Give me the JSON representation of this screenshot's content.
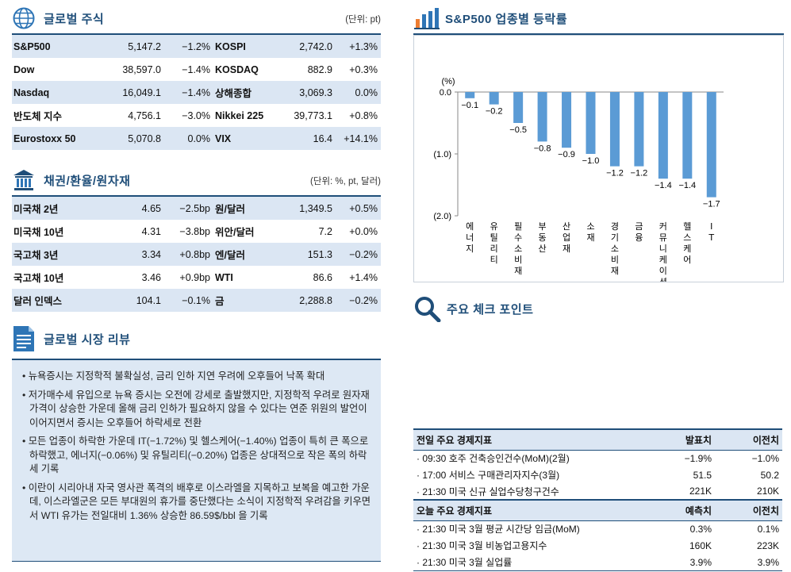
{
  "global_stocks": {
    "title": "글로벌 주식",
    "unit": "(단위: pt)",
    "rows": [
      {
        "name1": "S&P500",
        "val1": "5,147.2",
        "chg1": "−1.2%",
        "name2": "KOSPI",
        "val2": "2,742.0",
        "chg2": "+1.3%"
      },
      {
        "name1": "Dow",
        "val1": "38,597.0",
        "chg1": "−1.4%",
        "name2": "KOSDAQ",
        "val2": "882.9",
        "chg2": "+0.3%"
      },
      {
        "name1": "Nasdaq",
        "val1": "16,049.1",
        "chg1": "−1.4%",
        "name2": "상해종합",
        "val2": "3,069.3",
        "chg2": "0.0%"
      },
      {
        "name1": "반도체 지수",
        "val1": "4,756.1",
        "chg1": "−3.0%",
        "name2": "Nikkei 225",
        "val2": "39,773.1",
        "chg2": "+0.8%"
      },
      {
        "name1": "Eurostoxx 50",
        "val1": "5,070.8",
        "chg1": "0.0%",
        "name2": "VIX",
        "val2": "16.4",
        "chg2": "+14.1%"
      }
    ]
  },
  "bonds_fx": {
    "title": "채권/환율/원자재",
    "unit": "(단위: %, pt, 달러)",
    "rows": [
      {
        "name1": "미국채 2년",
        "val1": "4.65",
        "chg1": "−2.5bp",
        "name2": "원/달러",
        "val2": "1,349.5",
        "chg2": "+0.5%"
      },
      {
        "name1": "미국채 10년",
        "val1": "4.31",
        "chg1": "−3.8bp",
        "name2": "위안/달러",
        "val2": "7.2",
        "chg2": "+0.0%"
      },
      {
        "name1": "국고채 3년",
        "val1": "3.34",
        "chg1": "+0.8bp",
        "name2": "엔/달러",
        "val2": "151.3",
        "chg2": "−0.2%"
      },
      {
        "name1": "국고채 10년",
        "val1": "3.46",
        "chg1": "+0.9bp",
        "name2": "WTI",
        "val2": "86.6",
        "chg2": "+1.4%"
      },
      {
        "name1": "달러 인덱스",
        "val1": "104.1",
        "chg1": "−0.1%",
        "name2": "금",
        "val2": "2,288.8",
        "chg2": "−0.2%"
      }
    ]
  },
  "review": {
    "title": "글로벌 시장 리뷰",
    "bullets": [
      "뉴욕증시는 지정학적 불확실성, 금리 인하 지연 우려에 오후들어 낙폭 확대",
      "저가매수세 유입으로 뉴욕 증시는 오전에 강세로 출발했지만, 지정학적 우려로 원자재 가격이 상승한 가운데 올해 금리 인하가 필요하지 않을 수 있다는 연준 위원의 발언이 이어지면서 증시는 오후들어 하락세로 전환",
      "모든 업종이 하락한 가운데 IT(−1.72%) 및 헬스케어(−1.40%) 업종이 특히 큰 폭으로 하락했고, 에너지(−0.06%) 및 유틸리티(−0.20%) 업종은 상대적으로 작은 폭의 하락세 기록",
      "이란이 시리아내 자국 영사관 폭격의 배후로 이스라엘을 지목하고 보복을 예고한 가운데, 이스라엘군은 모든 부대원의 휴가를 중단했다는 소식이 지정학적 우려감을 키우면서 WTI 유가는 전일대비 1.36% 상승한 86.59$/bbl 을 기록"
    ]
  },
  "sector_chart": {
    "title": "S&P500 업종별 등락률"
  },
  "chart_data": {
    "type": "bar",
    "unit_label": "(%)",
    "categories": [
      "에너지",
      "유틸리티",
      "필수소비재",
      "부동산",
      "산업재",
      "소재",
      "경기소비재",
      "금융",
      "커뮤니케이션",
      "헬스케어",
      "IT"
    ],
    "values": [
      -0.1,
      -0.2,
      -0.5,
      -0.8,
      -0.9,
      -1.0,
      -1.2,
      -1.2,
      -1.4,
      -1.4,
      -1.7
    ],
    "value_labels": [
      "−0.1",
      "−0.2",
      "−0.5",
      "−0.8",
      "−0.9",
      "−1.0",
      "−1.2",
      "−1.2",
      "−1.4",
      "−1.4",
      "−1.7"
    ],
    "ylim": [
      -2.0,
      0.0
    ],
    "yticks": [
      0.0,
      -1.0,
      -2.0
    ],
    "ytick_labels": [
      "0.0",
      "(1.0)",
      "(2.0)"
    ],
    "bar_color": "#5b9bd5",
    "grid": false
  },
  "checkpoint": {
    "title": "주요 체크 포인트"
  },
  "econ_prev": {
    "header": [
      "전일 주요 경제지표",
      "발표치",
      "이전치"
    ],
    "rows": [
      [
        "· 09:30 호주 건축승인건수(MoM)(2월)",
        "−1.9%",
        "−1.0%"
      ],
      [
        "· 17:00 서비스 구매관리자지수(3월)",
        "51.5",
        "50.2"
      ],
      [
        "· 21:30 미국 신규 실업수당청구건수",
        "221K",
        "210K"
      ]
    ]
  },
  "econ_today": {
    "header": [
      "오늘 주요 경제지표",
      "예측치",
      "이전치"
    ],
    "rows": [
      [
        "· 21:30 미국 3월 평균 시간당 임금(MoM)",
        "0.3%",
        "0.1%"
      ],
      [
        "· 21:30 미국 3월 비농업고용지수",
        "160K",
        "223K"
      ],
      [
        "· 21:30 미국 3월 실업률",
        "3.9%",
        "3.9%"
      ]
    ]
  },
  "colors": {
    "accent": "#1f4e79",
    "row_band": "#dbe6f3",
    "bar": "#5b9bd5"
  }
}
